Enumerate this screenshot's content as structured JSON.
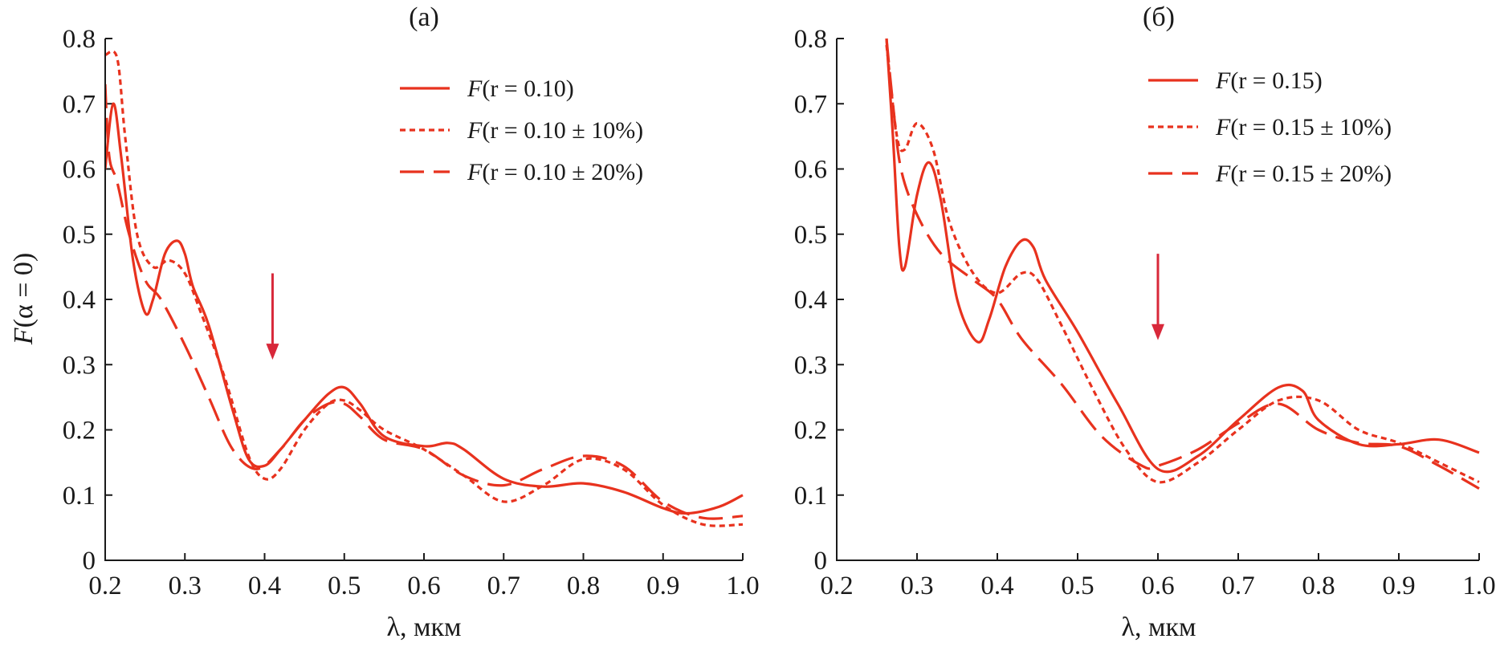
{
  "colors": {
    "curve": "#e8321e",
    "arrow": "#d8283a",
    "axis": "#1a1a1a"
  },
  "y_axis_label": {
    "F": "F",
    "rest": "(α = 0)"
  },
  "chart_data": [
    {
      "type": "line",
      "title": "(а)",
      "xlabel": "λ, мкм",
      "ylabel": "F(α = 0)",
      "xlim": [
        0.2,
        1.0
      ],
      "ylim": [
        0,
        0.8
      ],
      "x_ticks": [
        "0.2",
        "0.3",
        "0.4",
        "0.5",
        "0.6",
        "0.7",
        "0.8",
        "0.9",
        "1.0"
      ],
      "y_ticks": [
        "0",
        "0.1",
        "0.2",
        "0.3",
        "0.4",
        "0.5",
        "0.6",
        "0.7",
        "0.8"
      ],
      "arrow_at": {
        "x": 0.41,
        "y_from": 0.44,
        "y_to": 0.31
      },
      "legend_position": "top-right",
      "series": [
        {
          "name": "F(r = 0.10)",
          "legend_prefix": "F",
          "legend_text": "(r = 0.10)",
          "style": "solid",
          "x": [
            0.2,
            0.21,
            0.22,
            0.235,
            0.25,
            0.26,
            0.275,
            0.29,
            0.3,
            0.31,
            0.33,
            0.36,
            0.38,
            0.4,
            0.42,
            0.45,
            0.48,
            0.5,
            0.52,
            0.55,
            0.6,
            0.63,
            0.65,
            0.7,
            0.75,
            0.8,
            0.85,
            0.9,
            0.93,
            0.97,
            1.0
          ],
          "values": [
            0.6,
            0.7,
            0.62,
            0.46,
            0.38,
            0.4,
            0.47,
            0.49,
            0.47,
            0.42,
            0.36,
            0.23,
            0.155,
            0.145,
            0.17,
            0.215,
            0.255,
            0.265,
            0.24,
            0.19,
            0.175,
            0.18,
            0.17,
            0.125,
            0.113,
            0.118,
            0.105,
            0.08,
            0.072,
            0.082,
            0.1
          ]
        },
        {
          "name": "F(r = 0.10 ± 10%)",
          "legend_prefix": "F",
          "legend_text": "(r = 0.10 ± 10%)",
          "style": "dotted",
          "x": [
            0.2,
            0.215,
            0.225,
            0.24,
            0.26,
            0.28,
            0.3,
            0.32,
            0.35,
            0.38,
            0.4,
            0.42,
            0.45,
            0.48,
            0.5,
            0.52,
            0.55,
            0.6,
            0.65,
            0.7,
            0.75,
            0.8,
            0.85,
            0.9,
            0.95,
            1.0
          ],
          "values": [
            0.775,
            0.77,
            0.65,
            0.5,
            0.45,
            0.46,
            0.44,
            0.38,
            0.28,
            0.16,
            0.125,
            0.14,
            0.2,
            0.24,
            0.245,
            0.23,
            0.2,
            0.17,
            0.13,
            0.09,
            0.115,
            0.155,
            0.14,
            0.085,
            0.055,
            0.055
          ]
        },
        {
          "name": "F(r = 0.10 ± 20%)",
          "legend_prefix": "F",
          "legend_text": "(r = 0.10 ± 20%)",
          "style": "dashed",
          "x": [
            0.2,
            0.205,
            0.215,
            0.23,
            0.25,
            0.27,
            0.3,
            0.33,
            0.36,
            0.39,
            0.42,
            0.45,
            0.48,
            0.5,
            0.52,
            0.55,
            0.6,
            0.65,
            0.7,
            0.75,
            0.8,
            0.85,
            0.9,
            0.95,
            1.0
          ],
          "values": [
            0.73,
            0.62,
            0.58,
            0.5,
            0.43,
            0.4,
            0.33,
            0.25,
            0.17,
            0.14,
            0.17,
            0.215,
            0.24,
            0.24,
            0.22,
            0.185,
            0.17,
            0.13,
            0.115,
            0.14,
            0.16,
            0.145,
            0.09,
            0.065,
            0.068
          ]
        }
      ]
    },
    {
      "type": "line",
      "title": "(б)",
      "xlabel": "λ, мкм",
      "ylabel": "",
      "xlim": [
        0.2,
        1.0
      ],
      "ylim": [
        0,
        0.8
      ],
      "x_ticks": [
        "0.2",
        "0.3",
        "0.4",
        "0.5",
        "0.6",
        "0.7",
        "0.8",
        "0.9",
        "1.0"
      ],
      "y_ticks": [
        "0",
        "0.1",
        "0.2",
        "0.3",
        "0.4",
        "0.5",
        "0.6",
        "0.7",
        "0.8"
      ],
      "arrow_at": {
        "x": 0.6,
        "y_from": 0.47,
        "y_to": 0.34
      },
      "legend_position": "top-right",
      "series": [
        {
          "name": "F(r = 0.15)",
          "legend_prefix": "F",
          "legend_text": "(r = 0.15)",
          "style": "solid",
          "x": [
            0.262,
            0.27,
            0.278,
            0.285,
            0.3,
            0.315,
            0.33,
            0.35,
            0.375,
            0.39,
            0.41,
            0.43,
            0.445,
            0.46,
            0.5,
            0.55,
            0.6,
            0.65,
            0.7,
            0.75,
            0.78,
            0.8,
            0.85,
            0.9,
            0.95,
            1.0
          ],
          "values": [
            0.8,
            0.65,
            0.48,
            0.45,
            0.56,
            0.61,
            0.55,
            0.4,
            0.335,
            0.37,
            0.45,
            0.49,
            0.48,
            0.43,
            0.35,
            0.24,
            0.14,
            0.16,
            0.215,
            0.265,
            0.26,
            0.215,
            0.178,
            0.178,
            0.185,
            0.165
          ]
        },
        {
          "name": "F(r = 0.15 ± 10%)",
          "legend_prefix": "F",
          "legend_text": "(r = 0.15 ± 10%)",
          "style": "dotted",
          "x": [
            0.262,
            0.275,
            0.285,
            0.3,
            0.32,
            0.34,
            0.37,
            0.4,
            0.43,
            0.45,
            0.48,
            0.52,
            0.56,
            0.6,
            0.65,
            0.7,
            0.75,
            0.8,
            0.85,
            0.9,
            0.95,
            1.0
          ],
          "values": [
            0.79,
            0.65,
            0.63,
            0.67,
            0.63,
            0.52,
            0.44,
            0.41,
            0.44,
            0.43,
            0.36,
            0.26,
            0.17,
            0.12,
            0.15,
            0.2,
            0.245,
            0.245,
            0.2,
            0.18,
            0.15,
            0.12
          ]
        },
        {
          "name": "F(r = 0.15 ± 20%)",
          "legend_prefix": "F",
          "legend_text": "(r = 0.15 ± 20%)",
          "style": "dashed",
          "x": [
            0.262,
            0.27,
            0.28,
            0.3,
            0.33,
            0.37,
            0.4,
            0.43,
            0.48,
            0.53,
            0.58,
            0.6,
            0.65,
            0.7,
            0.75,
            0.8,
            0.85,
            0.9,
            0.95,
            1.0
          ],
          "values": [
            0.8,
            0.7,
            0.6,
            0.53,
            0.47,
            0.43,
            0.4,
            0.34,
            0.27,
            0.19,
            0.145,
            0.145,
            0.17,
            0.21,
            0.24,
            0.2,
            0.18,
            0.175,
            0.145,
            0.11
          ]
        }
      ]
    }
  ]
}
